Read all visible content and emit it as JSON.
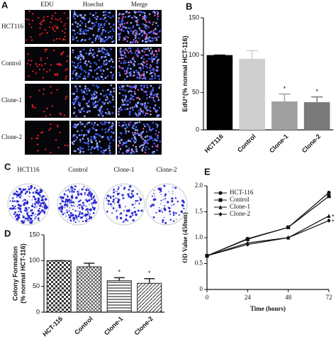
{
  "panel_a": {
    "letter": "A",
    "columns": [
      "EDU",
      "Hoechst",
      "Merge"
    ],
    "rows": [
      "HCT116",
      "Control",
      "Clone-1",
      "Clone-2"
    ]
  },
  "panel_c": {
    "letter": "C",
    "plates": [
      "HCT116",
      "Control",
      "Clone-1",
      "Clone-2"
    ]
  },
  "chart_data": [
    {
      "panel": "B",
      "type": "bar",
      "ylabel": "EdU⁺(% normal HCT-116)",
      "categories": [
        "HCT116",
        "Control",
        "Clone-1",
        "Clone-2"
      ],
      "values": [
        100,
        95,
        38,
        37
      ],
      "errors": [
        0,
        11,
        10,
        7
      ],
      "colors": [
        "#000000",
        "#cfcfcf",
        "#a0a0a0",
        "#7a7a7a"
      ],
      "ylim": [
        0,
        150
      ],
      "yticks": [
        0,
        50,
        100,
        150
      ],
      "annotations": [
        {
          "text": "*",
          "index": 2
        },
        {
          "text": "*",
          "index": 3
        }
      ]
    },
    {
      "panel": "D",
      "type": "bar",
      "ylabel": "Colony Formation\n(% normal HCT-116)",
      "categories": [
        "HCT-116",
        "Control",
        "Clone-1",
        "Clone-2"
      ],
      "values": [
        100,
        88,
        61,
        56
      ],
      "errors": [
        0,
        7,
        6,
        9
      ],
      "patterns": [
        "checker",
        "crosshatch",
        "horizontal",
        "diagonal"
      ],
      "ylim": [
        0,
        150
      ],
      "yticks": [
        0,
        50,
        100,
        150
      ],
      "annotations": [
        {
          "text": "*",
          "index": 2
        },
        {
          "text": "*",
          "index": 3
        }
      ]
    },
    {
      "panel": "E",
      "type": "line",
      "ylabel": "OD Value (450nm)",
      "xlabel": "Time (hours)",
      "x": [
        0,
        24,
        48,
        72
      ],
      "xlim": [
        0,
        72
      ],
      "xticks": [
        0,
        24,
        48,
        72
      ],
      "ylim": [
        0,
        2
      ],
      "yticks": [
        0,
        0.5,
        {
          "value": 1,
          "label": "1.0"
        },
        1.5,
        {
          "value": 2,
          "label": "2.0"
        }
      ],
      "legend": "upper-left",
      "series": [
        {
          "name": "HCT-116",
          "color": "#111111",
          "marker": "circle",
          "values": [
            0.65,
            0.98,
            1.2,
            1.87
          ]
        },
        {
          "name": "Control",
          "color": "#111111",
          "marker": "square",
          "values": [
            0.65,
            0.97,
            1.2,
            1.8
          ]
        },
        {
          "name": "Clone-1",
          "color": "#111111",
          "marker": "triangle",
          "values": [
            0.65,
            0.9,
            1.0,
            1.42
          ]
        },
        {
          "name": "Clone-2",
          "color": "#111111",
          "marker": "diamond",
          "values": [
            0.65,
            0.87,
            1.0,
            1.33
          ]
        }
      ],
      "annotations": [
        {
          "text": "*",
          "series": 2
        },
        {
          "text": "*",
          "series": 3
        }
      ]
    }
  ]
}
